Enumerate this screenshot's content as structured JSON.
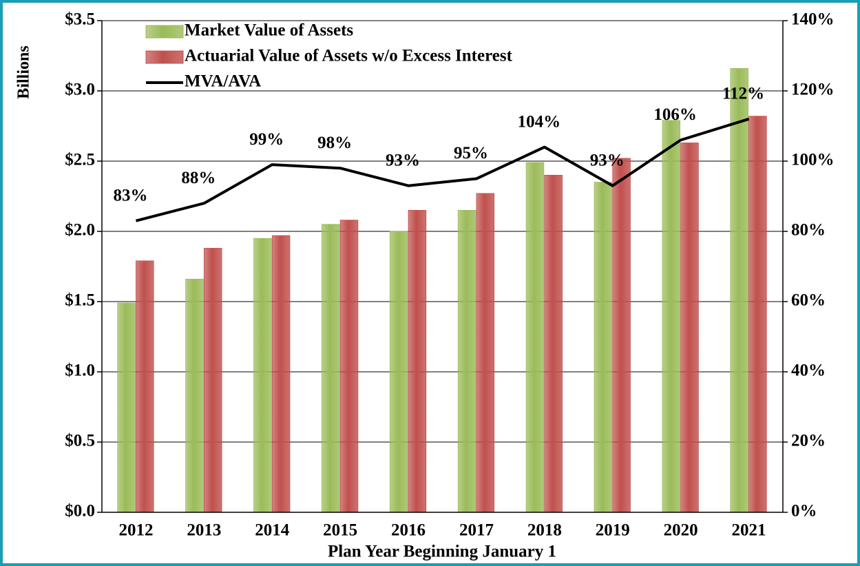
{
  "chart_data": {
    "type": "bar",
    "y_axis_label": "Billions",
    "x_axis_label": "Plan Year Beginning January 1",
    "categories": [
      "2012",
      "2013",
      "2014",
      "2015",
      "2016",
      "2017",
      "2018",
      "2019",
      "2020",
      "2021"
    ],
    "series": [
      {
        "name": "Market Value of Assets",
        "color": "#9bbb59",
        "values": [
          1.49,
          1.66,
          1.95,
          2.05,
          2.0,
          2.15,
          2.49,
          2.35,
          2.79,
          3.16
        ]
      },
      {
        "name": "Actuarial Value of Assets w/o Excess Interest",
        "color": "#c0504d",
        "values": [
          1.79,
          1.88,
          1.97,
          2.08,
          2.15,
          2.27,
          2.4,
          2.52,
          2.63,
          2.82
        ]
      },
      {
        "name": "MVA/AVA",
        "color": "#000000",
        "type": "line",
        "axis": "y2",
        "values": [
          83,
          88,
          99,
          98,
          93,
          95,
          104,
          93,
          106,
          112
        ],
        "value_labels": [
          "83%",
          "88%",
          "99%",
          "98%",
          "93%",
          "95%",
          "104%",
          "93%",
          "106%",
          "112%"
        ]
      }
    ],
    "ylim": [
      0,
      3.5
    ],
    "yticks": [
      {
        "value": 0,
        "label": "$0.0"
      },
      {
        "value": 0.5,
        "label": "$0.5"
      },
      {
        "value": 1,
        "label": "$1.0"
      },
      {
        "value": 1.5,
        "label": "$1.5"
      },
      {
        "value": 2,
        "label": "$2.0"
      },
      {
        "value": 2.5,
        "label": "$2.5"
      },
      {
        "value": 3,
        "label": "$3.0"
      },
      {
        "value": 3.5,
        "label": "$3.5"
      }
    ],
    "y2lim": [
      0,
      140
    ],
    "y2ticks": [
      {
        "value": 0,
        "label": "0%"
      },
      {
        "value": 20,
        "label": "20%"
      },
      {
        "value": 40,
        "label": "40%"
      },
      {
        "value": 60,
        "label": "60%"
      },
      {
        "value": 80,
        "label": "80%"
      },
      {
        "value": 100,
        "label": "100%"
      },
      {
        "value": 120,
        "label": "120%"
      },
      {
        "value": 140,
        "label": "140%"
      }
    ],
    "grid": true,
    "legend": "upper left"
  }
}
